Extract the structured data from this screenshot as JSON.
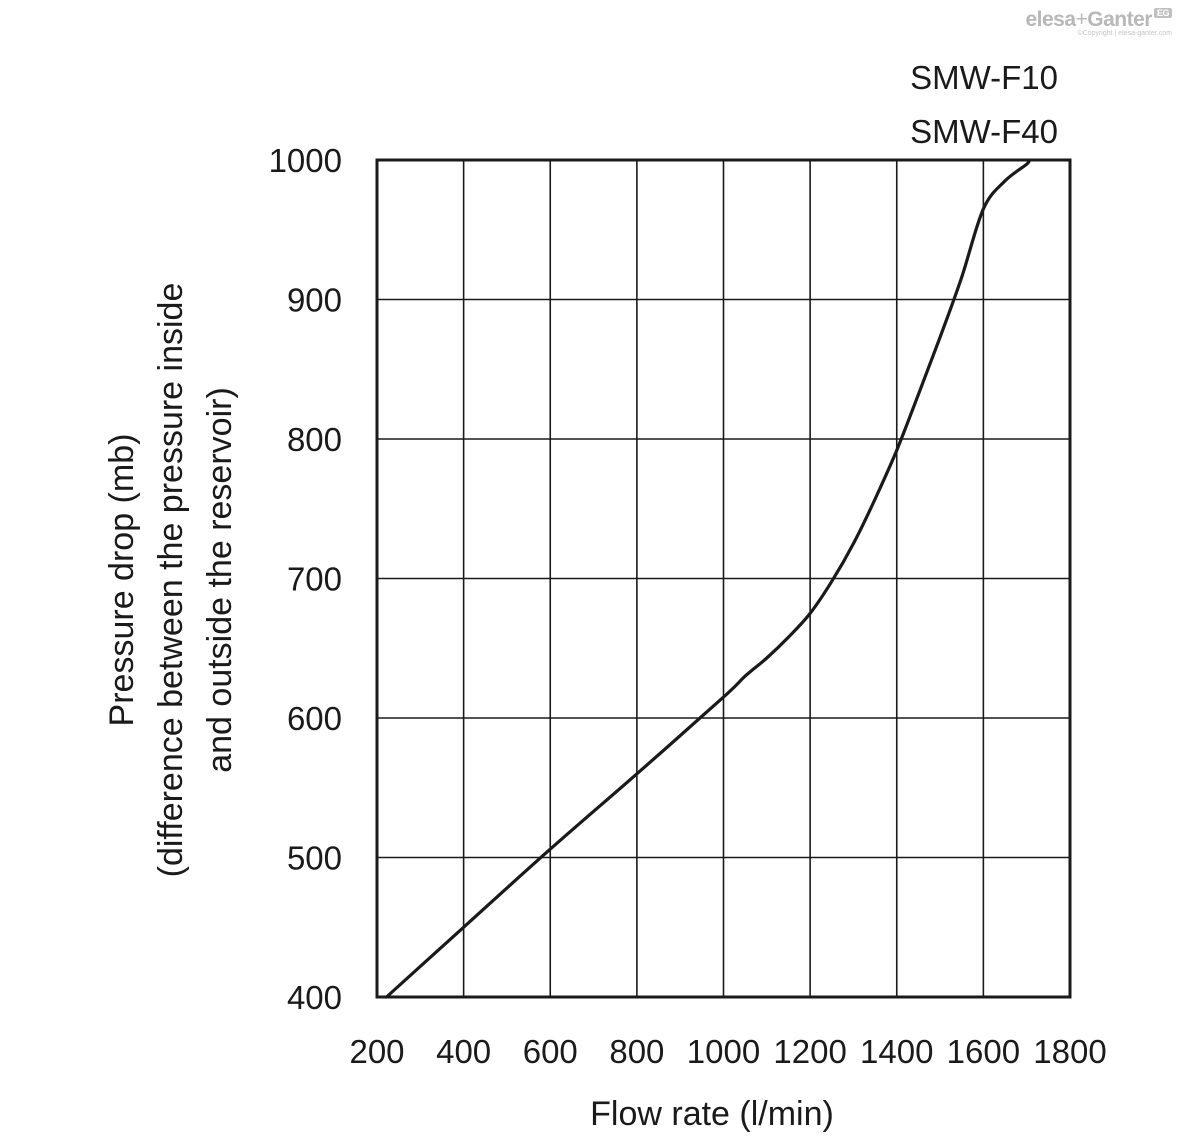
{
  "logo": {
    "brand_left": "elesa",
    "brand_plus": "+",
    "brand_right": "Ganter",
    "badge": "EG",
    "copyright": "©Copyright | elesa-ganter.com"
  },
  "chart_data": {
    "type": "line",
    "title": "",
    "xlabel": "Flow rate (l/min)",
    "ylabel_lines": [
      "Pressure drop (mb)",
      "(difference between the pressure inside",
      "and outside the reservoir)"
    ],
    "legend": [
      "SMW-F10",
      "SMW-F40"
    ],
    "xlim": [
      200,
      1800
    ],
    "ylim": [
      400,
      1000
    ],
    "xticks": [
      200,
      400,
      600,
      800,
      1000,
      1200,
      1400,
      1600,
      1800
    ],
    "yticks": [
      400,
      500,
      600,
      700,
      800,
      900,
      1000
    ],
    "grid": true,
    "series": [
      {
        "x": [
          222,
          400,
          600,
          800,
          1000,
          1050,
          1100,
          1150,
          1200,
          1250,
          1300,
          1350,
          1400,
          1450,
          1500,
          1550,
          1600,
          1650,
          1700,
          1705
        ],
        "y": [
          400,
          450,
          506,
          560,
          615,
          630,
          643,
          658,
          675,
          698,
          725,
          757,
          792,
          832,
          873,
          916,
          965,
          985,
          997,
          1000
        ]
      }
    ]
  }
}
